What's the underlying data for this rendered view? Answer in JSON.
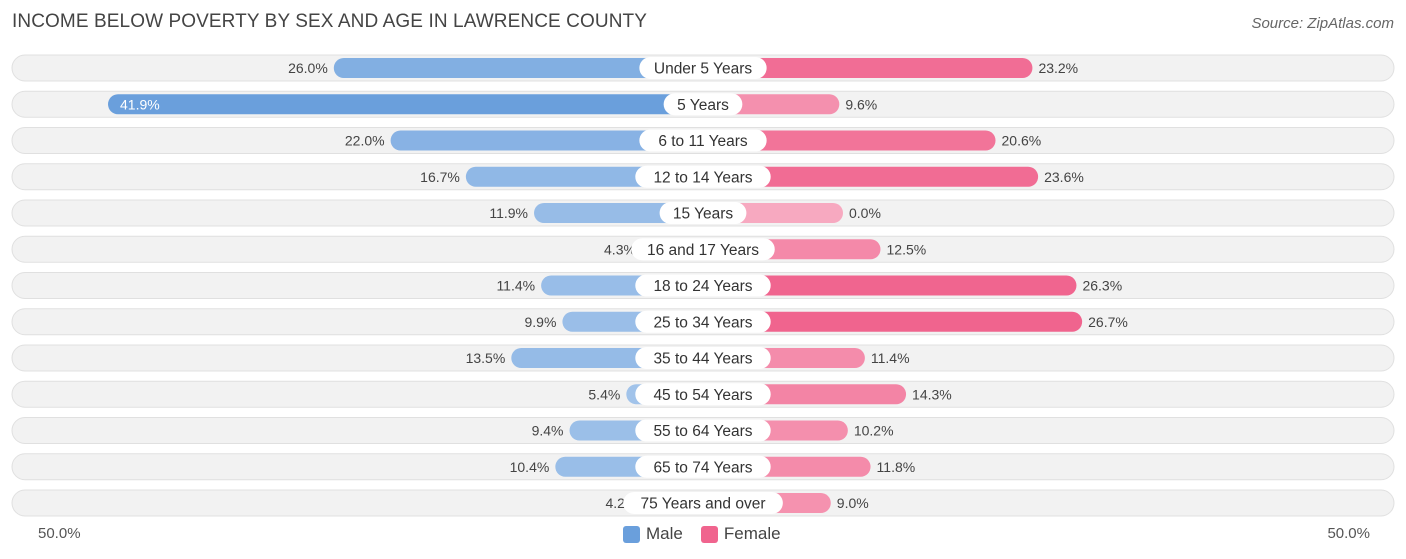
{
  "title": "INCOME BELOW POVERTY BY SEX AND AGE IN LAWRENCE COUNTY",
  "source": "Source: ZipAtlas.com",
  "colors": {
    "male_dark": "#6a9fdc",
    "male_light": "#a9c8ec",
    "female_dark": "#f0648e",
    "female_light": "#f7a9c0",
    "row_bg": "#f2f2f2"
  },
  "chart_data": {
    "type": "bar",
    "orientation": "horizontal-diverging",
    "title": "INCOME BELOW POVERTY BY SEX AND AGE IN LAWRENCE COUNTY",
    "categories": [
      "Under 5 Years",
      "5 Years",
      "6 to 11 Years",
      "12 to 14 Years",
      "15 Years",
      "16 and 17 Years",
      "18 to 24 Years",
      "25 to 34 Years",
      "35 to 44 Years",
      "45 to 54 Years",
      "55 to 64 Years",
      "65 to 74 Years",
      "75 Years and over"
    ],
    "series": [
      {
        "name": "Male",
        "values": [
          26.0,
          41.9,
          22.0,
          16.7,
          11.9,
          4.3,
          11.4,
          9.9,
          13.5,
          5.4,
          9.4,
          10.4,
          4.2
        ],
        "labels": [
          "26.0%",
          "41.9%",
          "22.0%",
          "16.7%",
          "11.9%",
          "4.3%",
          "11.4%",
          "9.9%",
          "13.5%",
          "5.4%",
          "9.4%",
          "10.4%",
          "4.2%"
        ]
      },
      {
        "name": "Female",
        "values": [
          23.2,
          9.6,
          20.6,
          23.6,
          0.0,
          12.5,
          26.3,
          26.7,
          11.4,
          14.3,
          10.2,
          11.8,
          9.0
        ],
        "labels": [
          "23.2%",
          "9.6%",
          "20.6%",
          "23.6%",
          "0.0%",
          "12.5%",
          "26.3%",
          "26.7%",
          "11.4%",
          "14.3%",
          "10.2%",
          "11.8%",
          "9.0%"
        ]
      }
    ],
    "xlim": [
      -50,
      50
    ],
    "axis_labels": {
      "left": "50.0%",
      "right": "50.0%"
    },
    "legend": {
      "position": "bottom-center",
      "entries": [
        "Male",
        "Female"
      ]
    }
  }
}
